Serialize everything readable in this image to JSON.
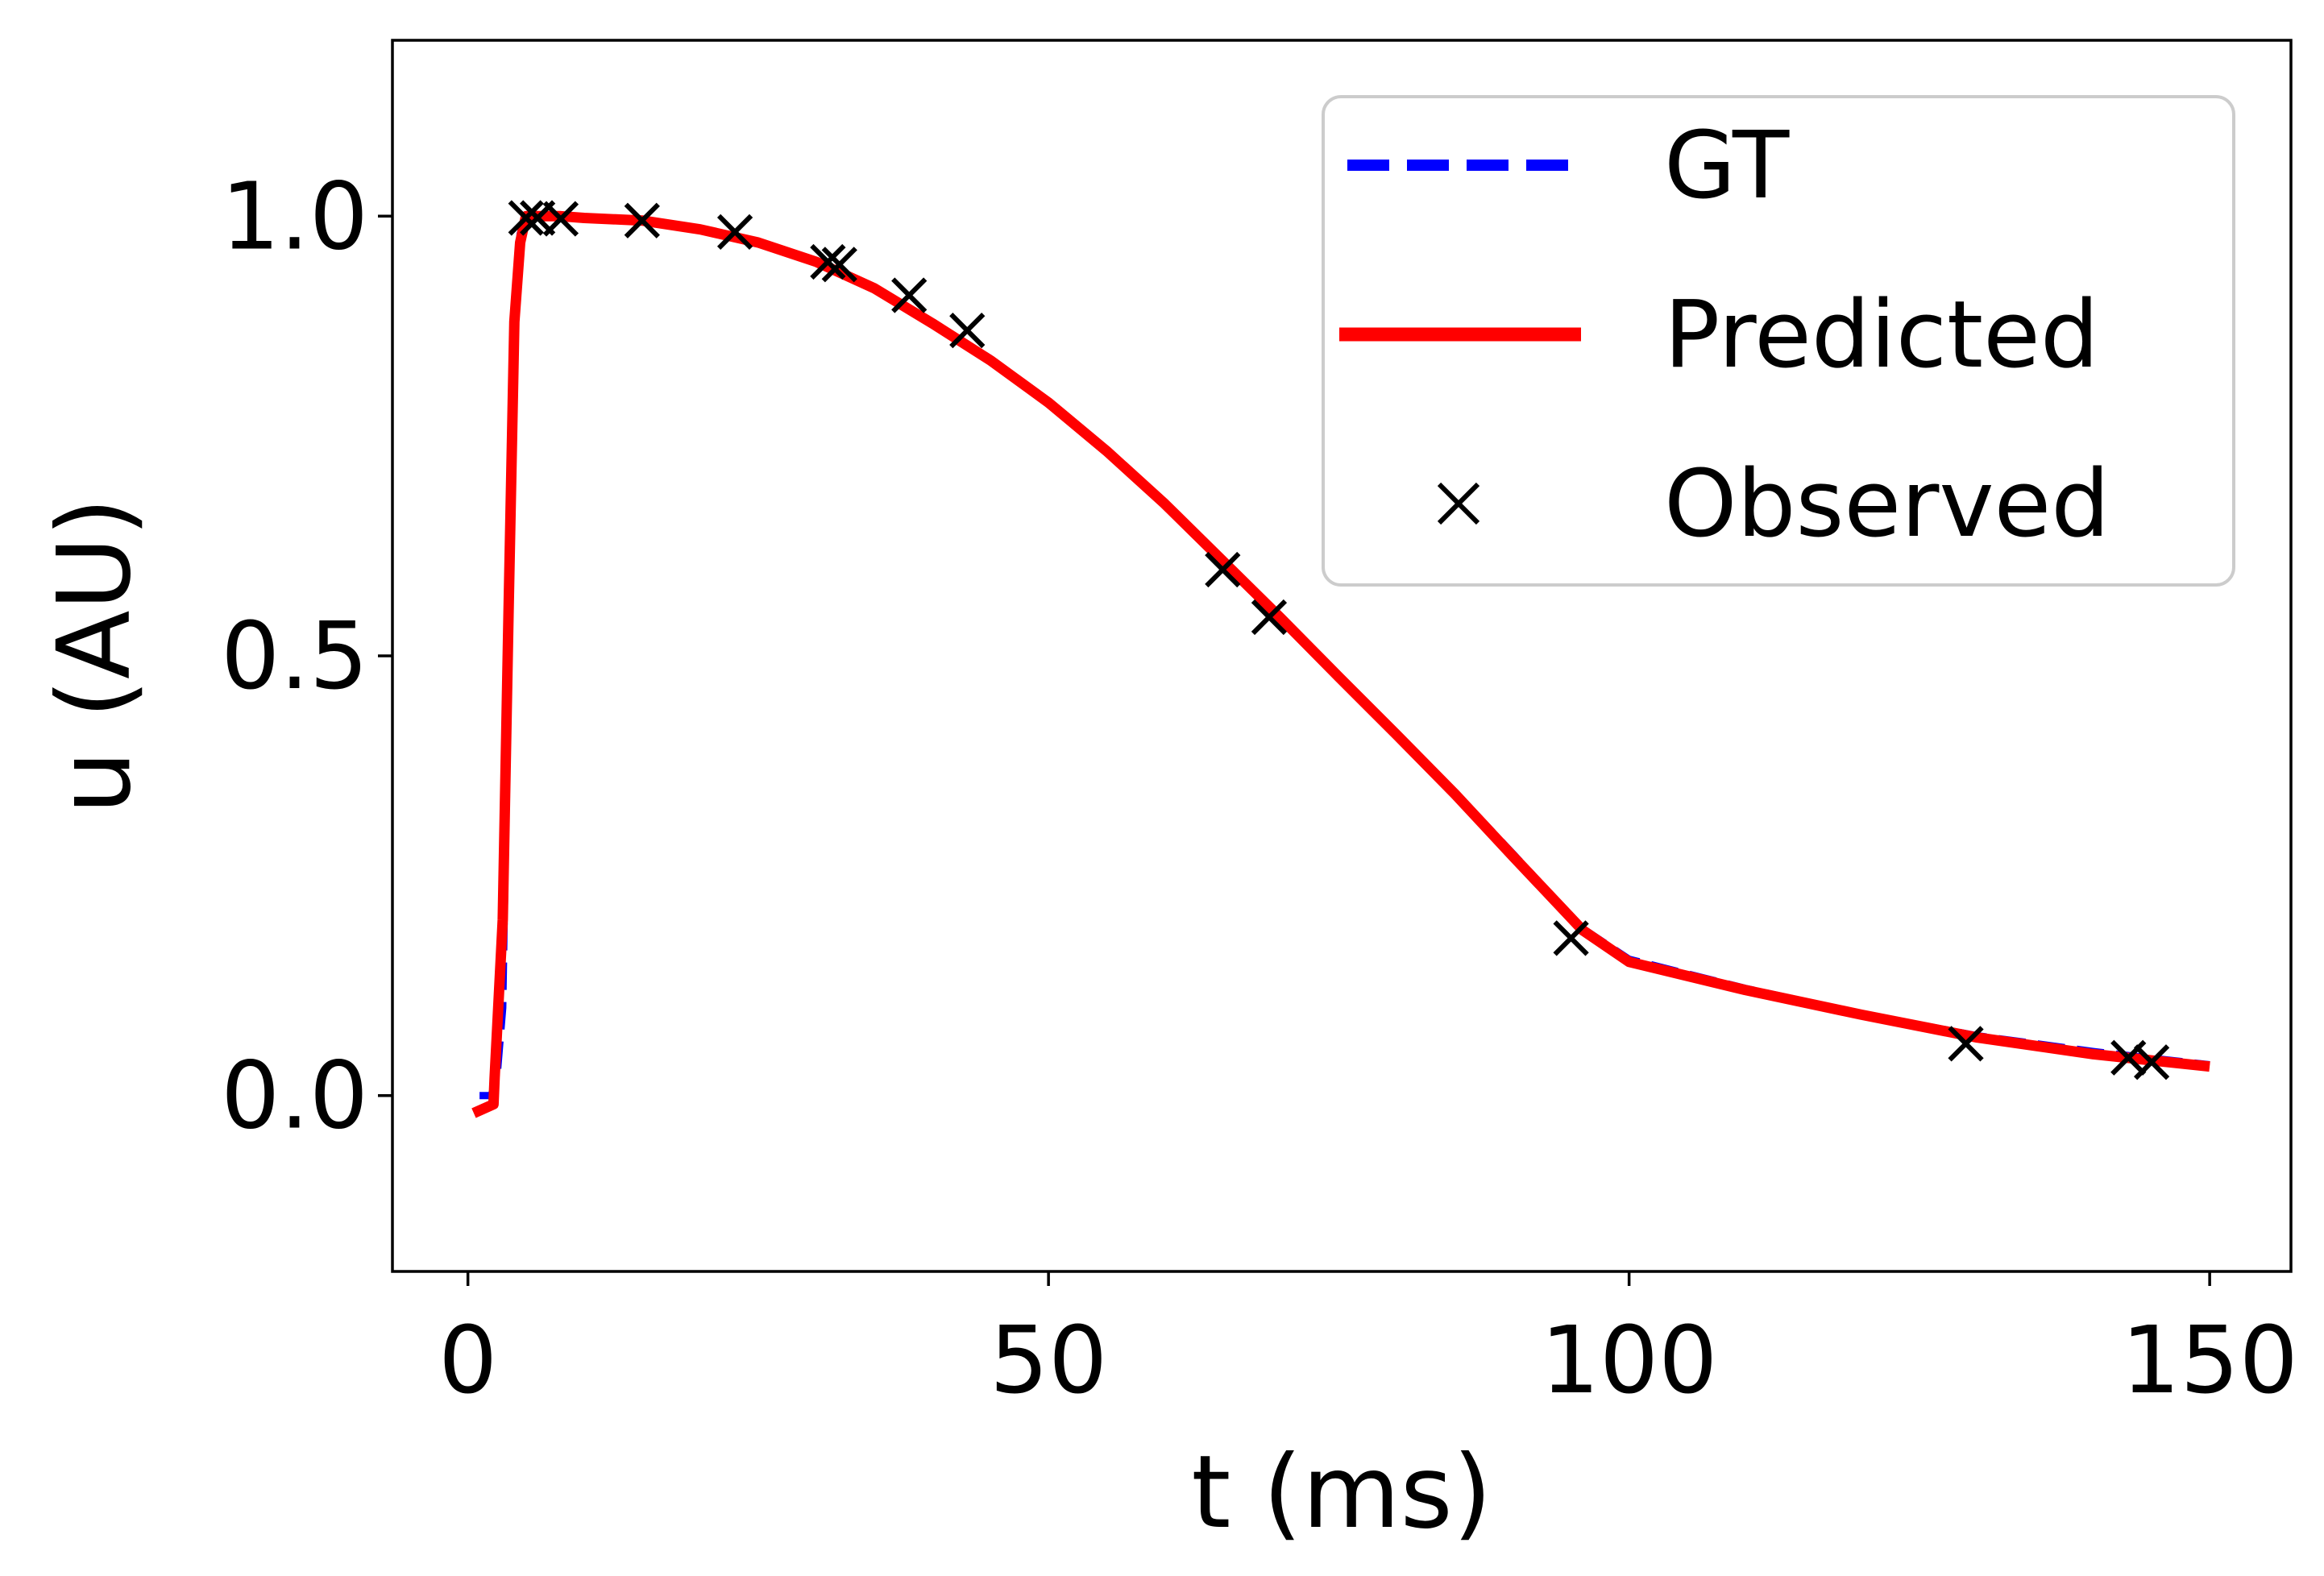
{
  "chart_data": {
    "type": "line",
    "title": "",
    "xlabel": "t (ms)",
    "ylabel": "u (AU)",
    "xlim": [
      -6.5,
      157
    ],
    "ylim": [
      -0.2,
      1.2
    ],
    "xticks": [
      0,
      50,
      100,
      150
    ],
    "xtick_labels": [
      "0",
      "50",
      "100",
      "150"
    ],
    "yticks": [
      0.0,
      0.5,
      1.0
    ],
    "ytick_labels": [
      "0.0",
      "0.5",
      "1.0"
    ],
    "grid": false,
    "legend_position": "upper right",
    "series": [
      {
        "name": "GT",
        "style": "dashed",
        "color": "#0000ff",
        "x": [
          1,
          2,
          2.5,
          3,
          3.5,
          4,
          4.5,
          5,
          6,
          8,
          10,
          15,
          20,
          25,
          30,
          35,
          40,
          45,
          50,
          55,
          60,
          65,
          70,
          75,
          80,
          85,
          90,
          93,
          96,
          100,
          110,
          120,
          130,
          140,
          150
        ],
        "y": [
          0.0,
          0.0,
          0.02,
          0.1,
          0.5,
          0.9,
          0.98,
          1.0,
          1.0,
          1.0,
          0.998,
          0.995,
          0.985,
          0.97,
          0.948,
          0.918,
          0.88,
          0.838,
          0.79,
          0.735,
          0.675,
          0.61,
          0.545,
          0.478,
          0.412,
          0.345,
          0.275,
          0.232,
          0.19,
          0.155,
          0.122,
          0.093,
          0.068,
          0.05,
          0.035
        ]
      },
      {
        "name": "Predicted",
        "style": "solid",
        "color": "#ff0000",
        "x": [
          0.5,
          2.2,
          2.3,
          3,
          3.5,
          4,
          4.5,
          5,
          6,
          8,
          10,
          15,
          20,
          25,
          30,
          35,
          40,
          45,
          50,
          55,
          60,
          65,
          70,
          75,
          80,
          85,
          90,
          93,
          96,
          100,
          110,
          120,
          130,
          140,
          150
        ],
        "y": [
          -0.02,
          -0.01,
          0.02,
          0.2,
          0.55,
          0.88,
          0.97,
          1.0,
          1.0,
          1.0,
          0.998,
          0.995,
          0.985,
          0.97,
          0.948,
          0.918,
          0.878,
          0.836,
          0.788,
          0.733,
          0.673,
          0.608,
          0.543,
          0.476,
          0.41,
          0.343,
          0.272,
          0.23,
          0.188,
          0.152,
          0.12,
          0.092,
          0.066,
          0.047,
          0.033
        ]
      },
      {
        "name": "Observed",
        "style": "markers",
        "marker": "x",
        "color": "#000000",
        "x": [
          5,
          6,
          8,
          15,
          23,
          31,
          32,
          38,
          43,
          65,
          69,
          95,
          129,
          143,
          145
        ],
        "y": [
          0.998,
          0.998,
          0.997,
          0.995,
          0.982,
          0.948,
          0.945,
          0.91,
          0.87,
          0.598,
          0.544,
          0.179,
          0.059,
          0.043,
          0.038
        ]
      }
    ]
  }
}
